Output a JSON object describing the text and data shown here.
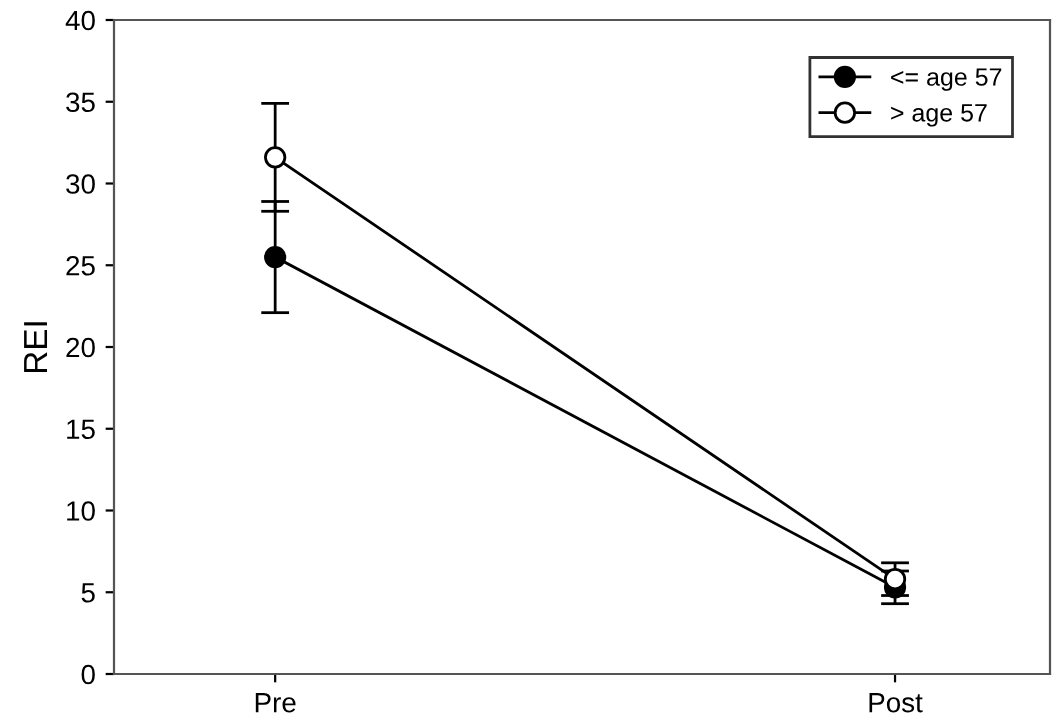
{
  "chart_data": {
    "type": "line",
    "ylabel": "REI",
    "categories": [
      "Pre",
      "Post"
    ],
    "series": [
      {
        "name": "<= age 57",
        "color": "#000000",
        "values": [
          25.5,
          5.3
        ],
        "errors": [
          3.4,
          1.0
        ]
      },
      {
        "name": "> age 57",
        "color": "#000000",
        "values": [
          31.6,
          5.8
        ],
        "errors": [
          3.3,
          1.0
        ]
      }
    ],
    "ylim": [
      0,
      40
    ],
    "yticks": [
      0,
      5,
      10,
      15,
      20,
      25,
      30,
      35,
      40
    ],
    "marker": "circle",
    "line_style": "solid",
    "legend": "top right",
    "grid": false
  }
}
